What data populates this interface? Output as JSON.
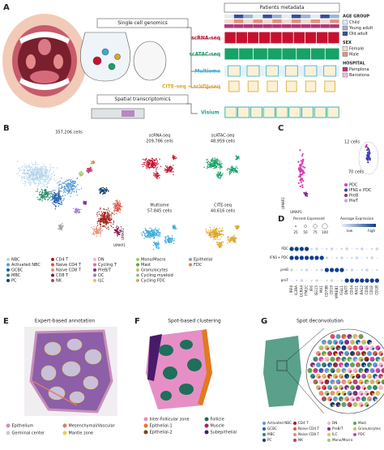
{
  "panel_a": {
    "label": "A",
    "single_cell": "Single cell genomics",
    "spatial": "Spatial transcriptomics",
    "metadata_title": "Patients metadata",
    "assays": [
      {
        "name": "scRNA-seq",
        "color": "#c8102e"
      },
      {
        "name": "scATAC-seq",
        "color": "#17a266"
      },
      {
        "name": "Multiome",
        "color": "#3aa9dc"
      },
      {
        "name": "CITE-seq + scVDJ-seq",
        "color": "#e0a526"
      },
      {
        "name": "Visium",
        "color": "#15a39a"
      }
    ],
    "legend": [
      {
        "title": "AGE GROUP",
        "items": [
          {
            "name": "Child",
            "color": "#e4ebf5"
          },
          {
            "name": "Young adult",
            "color": "#9fb3d6"
          },
          {
            "name": "Old adult",
            "color": "#34509a"
          }
        ]
      },
      {
        "title": "SEX",
        "items": [
          {
            "name": "Female",
            "color": "#f6d9cf"
          },
          {
            "name": "Male",
            "color": "#e3937a"
          }
        ]
      },
      {
        "title": "HOSPITAL",
        "items": [
          {
            "name": "Pamplona",
            "color": "#b5357a"
          },
          {
            "name": "Barcelona",
            "color": "#ebc3dc"
          }
        ]
      }
    ]
  },
  "panel_b": {
    "label": "B",
    "total": "357,206 cells",
    "x_axis": "UMAP1",
    "y_axis": "UMAP2",
    "subsets": [
      {
        "name": "scRNA-seq",
        "cells": "209,786 cells"
      },
      {
        "name": "scATAC-seq",
        "cells": "48,959 cells"
      },
      {
        "name": "Multiome",
        "cells": "57,845 cells"
      },
      {
        "name": "CITE-seq",
        "cells": "40,616 cells"
      }
    ],
    "legend": [
      {
        "name": "NBC",
        "color": "#b8d6ea"
      },
      {
        "name": "Activated NBC",
        "color": "#5a9bd3"
      },
      {
        "name": "GCBC",
        "color": "#1f5fa8"
      },
      {
        "name": "MBC",
        "color": "#2a8a6e"
      },
      {
        "name": "PC",
        "color": "#0f3f6e"
      },
      {
        "name": "CD4 T",
        "color": "#a2231d"
      },
      {
        "name": "Naive CD4 T",
        "color": "#d9574a"
      },
      {
        "name": "Naive CD8 T",
        "color": "#e88f72"
      },
      {
        "name": "CD8 T",
        "color": "#8b1a4a"
      },
      {
        "name": "NK",
        "color": "#c23b6b"
      },
      {
        "name": "DN",
        "color": "#f2b8c6"
      },
      {
        "name": "Cycling T",
        "color": "#e86b9c"
      },
      {
        "name": "PreB/T",
        "color": "#7b2f8f"
      },
      {
        "name": "DC",
        "color": "#9b7bc8"
      },
      {
        "name": "ILC",
        "color": "#e3c44a"
      },
      {
        "name": "Mono/Macro",
        "color": "#a5c86a"
      },
      {
        "name": "Mast",
        "color": "#5aa84a"
      },
      {
        "name": "Granulocytes",
        "color": "#c9b86a"
      },
      {
        "name": "Cycling myeloid",
        "color": "#8fbf9f"
      },
      {
        "name": "Cycling FDC",
        "color": "#e8a05a"
      },
      {
        "name": "Epithelial",
        "color": "#9aa0a6"
      },
      {
        "name": "FDC",
        "color": "#d98b3a"
      }
    ]
  },
  "panel_c": {
    "label": "C",
    "small_cluster": "12 cells",
    "large_cluster": "70 cells",
    "x_axis": "UMAP1",
    "y_axis": "UMAP2",
    "legend": [
      {
        "name": "PDC",
        "color": "#d63fb5"
      },
      {
        "name": "IFN1+ PDC",
        "color": "#3b3fb5"
      },
      {
        "name": "PreB",
        "color": "#7b2f8f"
      },
      {
        "name": "PreT",
        "color": "#c9a3d9"
      }
    ]
  },
  "panel_d": {
    "label": "D",
    "size_title": "Percent Expressed",
    "size_ticks": [
      25,
      50,
      75,
      100
    ],
    "color_title": "Average Expression",
    "color_low": "low",
    "color_high": "high",
    "rows": [
      "PDC",
      "IFN1+ PDC",
      "preB",
      "preT"
    ],
    "genes": [
      "IRF8",
      "IL3RA",
      "LILRA4",
      "ITM2C",
      "IFI6",
      "ISG15",
      "MX1",
      "CD79B",
      "CD19",
      "VPREB1",
      "IGLL1",
      "DNTT",
      "CD34",
      "RAG1",
      "RAG2",
      "CD3E",
      "CD1E",
      "CD1B"
    ]
  },
  "panel_e": {
    "label": "E",
    "title": "Expert-based annotation",
    "legend": [
      {
        "name": "Epithelium",
        "color": "#c98fb8"
      },
      {
        "name": "Germinal center",
        "color": "#c9c9d9"
      },
      {
        "name": "Mesenchymal/Vascular",
        "color": "#e07a6a"
      },
      {
        "name": "Mantle zone",
        "color": "#e3d04a"
      }
    ]
  },
  "panel_f": {
    "label": "F",
    "title": "Spot-based clustering",
    "legend": [
      {
        "name": "Inter-Follicular zone",
        "color": "#e68fc7"
      },
      {
        "name": "Epithelial-1",
        "color": "#e07b1f"
      },
      {
        "name": "Epithelial-2",
        "color": "#7a3f1a"
      },
      {
        "name": "Follicle",
        "color": "#1f6f5a"
      },
      {
        "name": "Muscle",
        "color": "#c2185b"
      },
      {
        "name": "Subepithelial",
        "color": "#4a1a6a"
      }
    ]
  },
  "panel_g": {
    "label": "G",
    "title": "Spot deconvolution",
    "legend": [
      {
        "name": "Activated NBC",
        "color": "#5a9bd3"
      },
      {
        "name": "GCBC",
        "color": "#1f5fa8"
      },
      {
        "name": "MBC",
        "color": "#2a8a6e"
      },
      {
        "name": "PC",
        "color": "#0f3f6e"
      },
      {
        "name": "CD4 T",
        "color": "#a2231d"
      },
      {
        "name": "Naive CD4 T",
        "color": "#d9574a"
      },
      {
        "name": "Naive CD8 T",
        "color": "#e88f72"
      },
      {
        "name": "NK",
        "color": "#c23b6b"
      },
      {
        "name": "DN",
        "color": "#f2b8c6"
      },
      {
        "name": "PreB/T",
        "color": "#7b2f8f"
      },
      {
        "name": "ILC",
        "color": "#e3c44a"
      },
      {
        "name": "Mono/Macro",
        "color": "#a5c86a"
      },
      {
        "name": "Mast",
        "color": "#5aa84a"
      },
      {
        "name": "Granulocytes",
        "color": "#c9b86a"
      },
      {
        "name": "PDC",
        "color": "#d63fb5"
      }
    ]
  }
}
